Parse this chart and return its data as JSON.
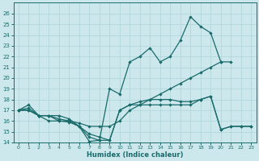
{
  "xlabel": "Humidex (Indice chaleur)",
  "xlim": [
    -0.5,
    23.5
  ],
  "ylim": [
    14,
    27
  ],
  "yticks": [
    14,
    15,
    16,
    17,
    18,
    19,
    20,
    21,
    22,
    23,
    24,
    25,
    26
  ],
  "xticks": [
    0,
    1,
    2,
    3,
    4,
    5,
    6,
    7,
    8,
    9,
    10,
    11,
    12,
    13,
    14,
    15,
    16,
    17,
    18,
    19,
    20,
    21,
    22,
    23
  ],
  "background_color": "#cde8ec",
  "grid_color": "#b0d8dc",
  "line_color": "#1a6b6b",
  "line1_y": [
    17,
    17.2,
    16.5,
    16.5,
    16.5,
    16.2,
    15.5,
    14.1,
    14.2,
    19.0,
    18.5,
    21.5,
    22.0,
    22.8,
    21.5,
    22.0,
    23.5,
    25.7,
    24.8,
    24.2,
    21.5,
    null,
    null,
    null
  ],
  "line2_y": [
    17,
    17,
    16.5,
    16.5,
    16.0,
    15.9,
    15.5,
    14.8,
    14.5,
    14.2,
    17.0,
    17.5,
    17.8,
    18.0,
    18.0,
    18.0,
    17.8,
    17.8,
    18.0,
    18.3,
    15.2,
    15.5,
    15.5,
    15.5
  ],
  "line3_y": [
    17,
    17.5,
    16.5,
    16.0,
    16.0,
    16.0,
    15.8,
    15.5,
    15.5,
    15.5,
    16.0,
    17.0,
    17.5,
    18.0,
    18.5,
    19.0,
    19.5,
    20.0,
    20.5,
    21.0,
    21.5,
    21.5,
    null,
    null
  ],
  "line4_y": [
    17,
    17,
    16.5,
    16.5,
    16.2,
    16.0,
    15.5,
    14.5,
    14.2,
    14.2,
    17.0,
    17.5,
    17.5,
    17.5,
    17.5,
    17.5,
    17.5,
    17.5,
    18.0,
    18.3,
    15.2,
    15.5,
    15.5,
    15.5
  ]
}
